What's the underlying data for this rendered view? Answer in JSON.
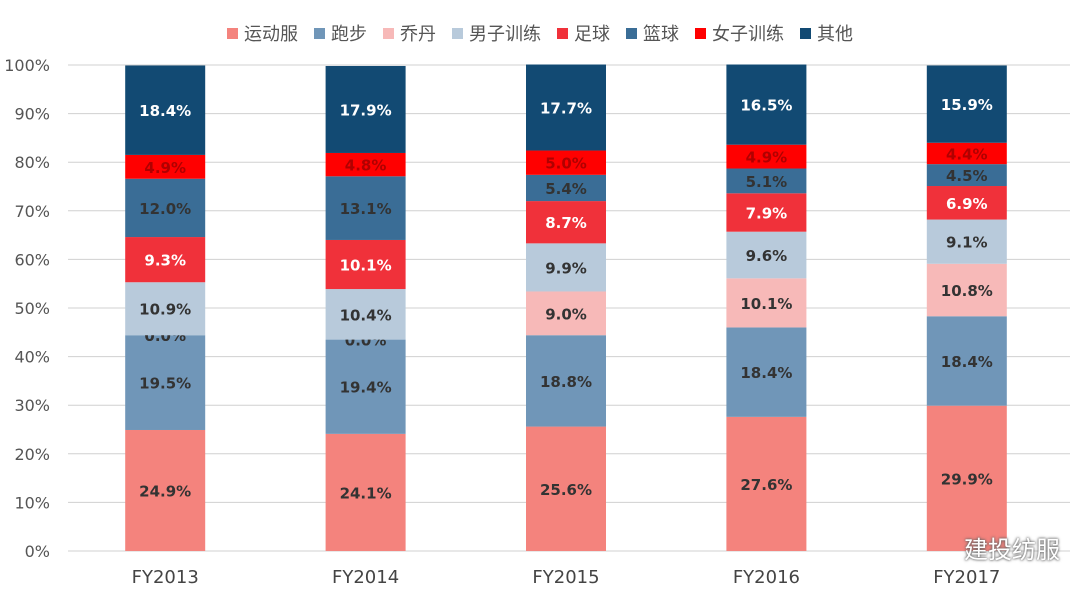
{
  "chart_data": {
    "type": "bar",
    "stacked": true,
    "categories": [
      "FY2013",
      "FY2014",
      "FY2015",
      "FY2016",
      "FY2017"
    ],
    "series": [
      {
        "name": "运动服",
        "color": "#f4837d",
        "label_color": "#333333",
        "values": [
          24.9,
          24.1,
          25.6,
          27.6,
          29.9
        ]
      },
      {
        "name": "跑步",
        "color": "#7096b8",
        "label_color": "#333333",
        "values": [
          19.5,
          19.4,
          18.8,
          18.4,
          18.4
        ]
      },
      {
        "name": "乔丹",
        "color": "#f7b9b8",
        "label_color": "#333333",
        "values": [
          0.0,
          0.0,
          9.0,
          10.1,
          10.8
        ]
      },
      {
        "name": "男子训练",
        "color": "#b8cadb",
        "label_color": "#333333",
        "values": [
          10.9,
          10.4,
          9.9,
          9.6,
          9.1
        ]
      },
      {
        "name": "足球",
        "color": "#f0313a",
        "label_color": "#ffffff",
        "values": [
          9.3,
          10.1,
          8.7,
          7.9,
          6.9
        ]
      },
      {
        "name": "篮球",
        "color": "#3a6d96",
        "label_color": "#333333",
        "values": [
          12.0,
          13.1,
          5.4,
          5.1,
          4.5
        ]
      },
      {
        "name": "女子训练",
        "color": "#ff0000",
        "label_color": "#b00000",
        "values": [
          4.9,
          4.8,
          5.0,
          4.9,
          4.4
        ]
      },
      {
        "name": "其他",
        "color": "#124a73",
        "label_color": "#ffffff",
        "values": [
          18.4,
          17.9,
          17.7,
          16.5,
          15.9
        ]
      }
    ],
    "ylim": [
      0,
      100
    ],
    "yticks": [
      "0%",
      "10%",
      "20%",
      "30%",
      "40%",
      "50%",
      "60%",
      "70%",
      "80%",
      "90%",
      "100%"
    ],
    "grid": true,
    "legend": "top"
  },
  "watermark": "建投纺服"
}
